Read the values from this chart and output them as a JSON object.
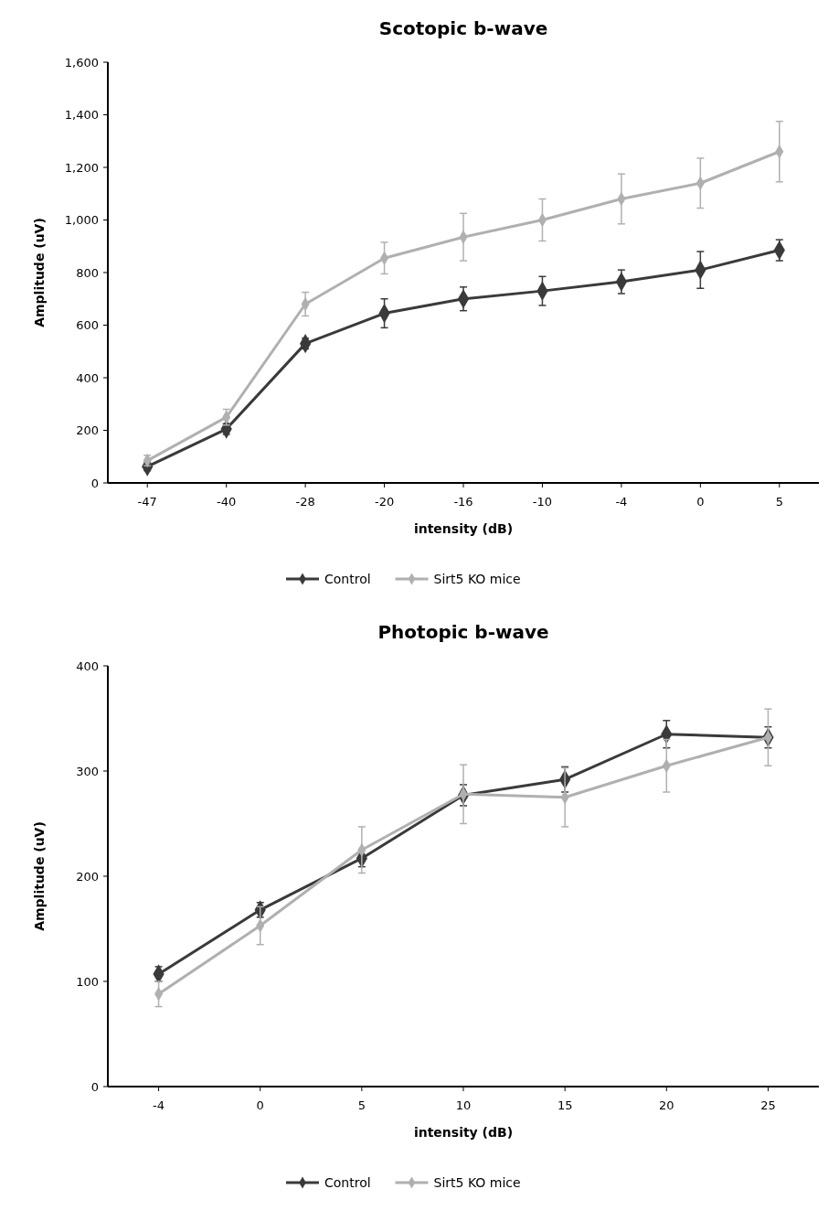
{
  "chart_data": [
    {
      "type": "line",
      "title": "Scotopic b-wave",
      "xlabel": "intensity (dB)",
      "ylabel": "Amplitude (uV)",
      "categories": [
        "-47",
        "-40",
        "-28",
        "-20",
        "-16",
        "-10",
        "-4",
        "0",
        "5"
      ],
      "ylim": [
        0,
        1600
      ],
      "yticks": [
        {
          "value": 0,
          "label": "0"
        },
        {
          "value": 200,
          "label": "200"
        },
        {
          "value": 400,
          "label": "400"
        },
        {
          "value": 600,
          "label": "600"
        },
        {
          "value": 800,
          "label": "800"
        },
        {
          "value": 1000,
          "label": "1,000"
        },
        {
          "value": 1200,
          "label": "1,200"
        },
        {
          "value": 1400,
          "label": "1,400"
        },
        {
          "value": 1600,
          "label": "1,600"
        }
      ],
      "legend": "bottom",
      "marker": "diamond",
      "grid": false,
      "series": [
        {
          "name": "Control",
          "color": "#3a3a3a",
          "values": [
            62,
            205,
            530,
            645,
            700,
            730,
            765,
            810,
            885
          ],
          "errors": [
            15,
            20,
            20,
            55,
            45,
            55,
            45,
            70,
            40
          ]
        },
        {
          "name": "Sirt5 KO mice",
          "color": "#b0b0b0",
          "values": [
            85,
            250,
            680,
            855,
            935,
            1000,
            1080,
            1140,
            1260
          ],
          "errors": [
            20,
            30,
            45,
            60,
            90,
            80,
            95,
            95,
            115
          ]
        }
      ]
    },
    {
      "type": "line",
      "title": "Photopic b-wave",
      "xlabel": "intensity (dB)",
      "ylabel": "Amplitude (uV)",
      "categories": [
        "-4",
        "0",
        "5",
        "10",
        "15",
        "20",
        "25"
      ],
      "ylim": [
        0,
        400
      ],
      "yticks": [
        0,
        100,
        200,
        300,
        400
      ],
      "legend": "bottom",
      "marker": "diamond",
      "grid": false,
      "series": [
        {
          "name": "Control",
          "color": "#3a3a3a",
          "values": [
            107,
            168,
            217,
            277,
            292,
            335,
            332
          ],
          "errors": [
            7,
            7,
            8,
            10,
            12,
            13,
            10
          ]
        },
        {
          "name": "Sirt5 KO mice",
          "color": "#b0b0b0",
          "values": [
            88,
            153,
            225,
            278,
            275,
            305,
            332
          ],
          "errors": [
            12,
            18,
            22,
            28,
            28,
            25,
            27
          ]
        }
      ]
    }
  ]
}
